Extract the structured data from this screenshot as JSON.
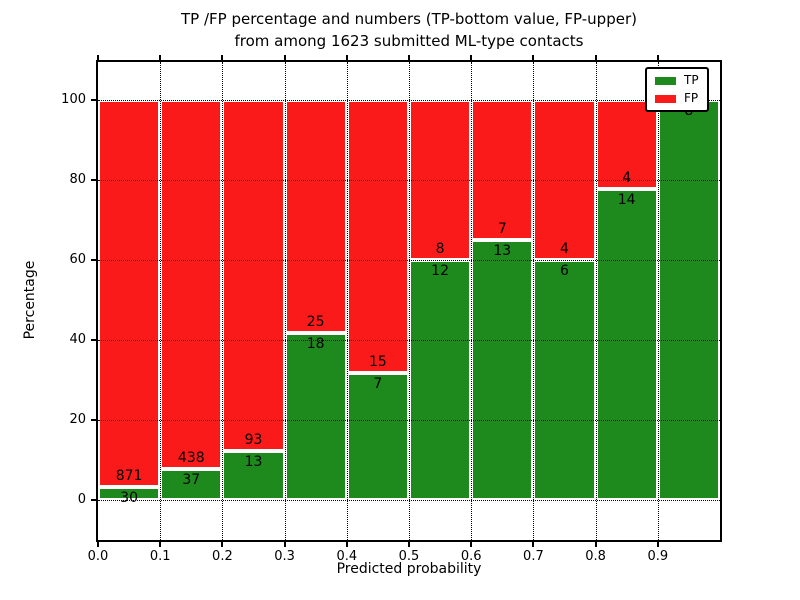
{
  "chart_data": {
    "type": "bar",
    "stacked": true,
    "unit": "percent",
    "title_lines": [
      "TP /FP percentage and numbers (TP-bottom value, FP-upper)",
      "from among 1623 submitted ML-type contacts"
    ],
    "total_contacts": 1623,
    "xlabel": "Predicted probability",
    "ylabel": "Percentage",
    "bins": [
      0.0,
      0.1,
      0.2,
      0.3,
      0.4,
      0.5,
      0.6,
      0.7,
      0.8,
      0.9,
      1.0
    ],
    "xtick_labels": [
      "0.0",
      "0.1",
      "0.2",
      "0.3",
      "0.4",
      "0.5",
      "0.6",
      "0.7",
      "0.8",
      "0.9"
    ],
    "ytick_values": [
      0,
      20,
      40,
      60,
      80,
      100
    ],
    "xlim": [
      0.0,
      1.0
    ],
    "ylim": [
      -10,
      109.5
    ],
    "grid": true,
    "series": [
      {
        "name": "TP",
        "color": "#1e8a1e",
        "counts": [
          30,
          37,
          13,
          18,
          7,
          12,
          13,
          6,
          14,
          8
        ]
      },
      {
        "name": "FP",
        "color": "#fb1a1a",
        "counts": [
          871,
          438,
          93,
          25,
          15,
          8,
          7,
          4,
          4,
          0
        ]
      }
    ],
    "tp_percent": [
      3.33,
      7.79,
      12.26,
      41.86,
      31.82,
      60.0,
      65.0,
      60.0,
      77.78,
      100.0
    ],
    "legend": {
      "position": "upper right",
      "entries": [
        {
          "label": "TP",
          "color": "#1e8a1e"
        },
        {
          "label": "FP",
          "color": "#fb1a1a"
        }
      ]
    }
  }
}
